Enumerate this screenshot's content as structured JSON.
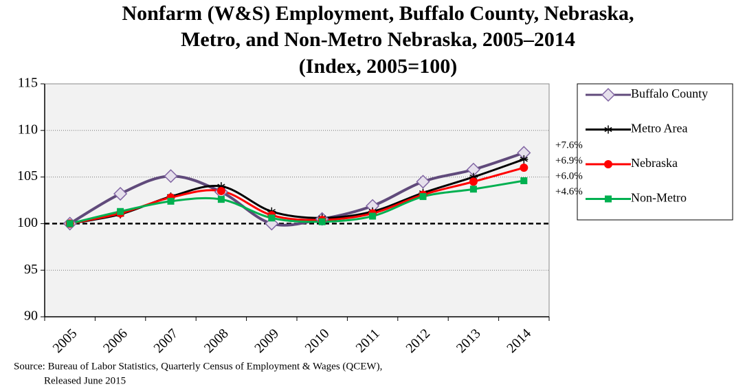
{
  "chart_data": {
    "type": "line",
    "title": [
      "Nonfarm (W&S) Employment, Buffalo County, Nebraska,",
      "Metro, and Non-Metro Nebraska,  2005–2014"
    ],
    "subtitle": "(Index, 2005=100)",
    "categories": [
      "2005",
      "2006",
      "2007",
      "2008",
      "2009",
      "2010",
      "2011",
      "2012",
      "2013",
      "2014"
    ],
    "series": [
      {
        "name": "Buffalo County",
        "color": "#604a7b",
        "marker": "diamond",
        "values": [
          100,
          103.2,
          105.1,
          103.4,
          100.0,
          100.5,
          101.9,
          104.5,
          105.8,
          107.6
        ]
      },
      {
        "name": "Metro Area",
        "color": "#000000",
        "marker": "star",
        "values": [
          100,
          101.0,
          102.9,
          104.0,
          101.3,
          100.6,
          101.3,
          103.3,
          105.0,
          106.9
        ]
      },
      {
        "name": "Nebraska",
        "color": "#ff0000",
        "marker": "circle",
        "values": [
          100,
          101.1,
          102.8,
          103.5,
          100.9,
          100.4,
          101.1,
          103.1,
          104.5,
          106.0
        ]
      },
      {
        "name": "Non-Metro",
        "color": "#00b050",
        "marker": "square",
        "values": [
          100,
          101.3,
          102.4,
          102.6,
          100.6,
          100.2,
          100.8,
          102.9,
          103.7,
          104.6
        ]
      }
    ],
    "ylim": [
      90,
      115
    ],
    "yticks": [
      90,
      95,
      100,
      105,
      110,
      115
    ],
    "grid": true,
    "reference_line": 100,
    "annotations": [
      "+7.6%",
      "+6.9%",
      "+6.0%",
      "+4.6%"
    ],
    "legend": "right",
    "source": [
      "Source: Bureau of Labor Statistics, Quarterly Census of Employment & Wages (QCEW),",
      "Released June 2015"
    ]
  }
}
